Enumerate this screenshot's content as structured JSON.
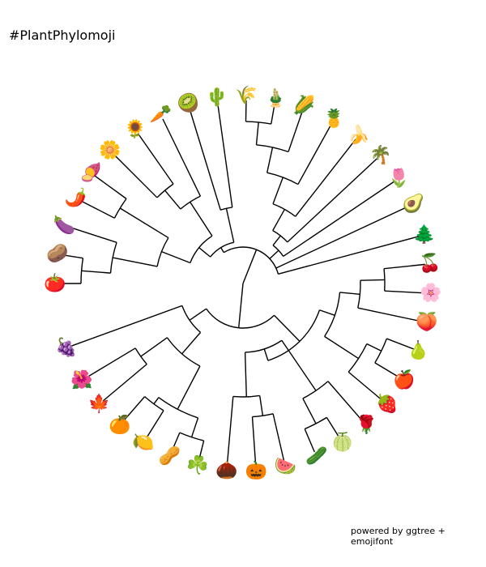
{
  "title": "#PlantPhylomoji",
  "caption": "powered by ggtree + emojifont",
  "colors": {
    "branch": "#000000",
    "background": "#ffffff"
  },
  "tree": {
    "tips": [
      {
        "name": "tomato",
        "emoji": "🍅"
      },
      {
        "name": "potato",
        "emoji": "🥔"
      },
      {
        "name": "eggplant",
        "emoji": "🍆"
      },
      {
        "name": "hot-pepper",
        "emoji": "🌶️"
      },
      {
        "name": "sweet-potato",
        "emoji": "🍠"
      },
      {
        "name": "blossom",
        "emoji": "🌼"
      },
      {
        "name": "sunflower",
        "emoji": "🌻"
      },
      {
        "name": "carrot",
        "emoji": "🥕"
      },
      {
        "name": "kiwi",
        "emoji": "🥝"
      },
      {
        "name": "cactus",
        "emoji": "🌵"
      },
      {
        "name": "rice",
        "emoji": "🌾"
      },
      {
        "name": "bamboo",
        "emoji": "🎍"
      },
      {
        "name": "corn",
        "emoji": "🌽"
      },
      {
        "name": "pineapple",
        "emoji": "🍍"
      },
      {
        "name": "banana",
        "emoji": "🍌"
      },
      {
        "name": "palm-tree",
        "emoji": "🌴"
      },
      {
        "name": "tulip",
        "emoji": "🌷"
      },
      {
        "name": "avocado",
        "emoji": "🥑"
      },
      {
        "name": "evergreen-tree",
        "emoji": "🌲"
      },
      {
        "name": "cherries",
        "emoji": "🍒"
      },
      {
        "name": "cherry-blossom",
        "emoji": "🌸"
      },
      {
        "name": "peach",
        "emoji": "🍑"
      },
      {
        "name": "pear",
        "emoji": "🍐"
      },
      {
        "name": "apple",
        "emoji": "🍎"
      },
      {
        "name": "strawberry",
        "emoji": "🍓"
      },
      {
        "name": "rose",
        "emoji": "🌹"
      },
      {
        "name": "melon",
        "emoji": "🍈"
      },
      {
        "name": "cucumber",
        "emoji": "🥒"
      },
      {
        "name": "watermelon",
        "emoji": "🍉"
      },
      {
        "name": "pumpkin",
        "emoji": "🎃"
      },
      {
        "name": "chestnut",
        "emoji": "🌰"
      },
      {
        "name": "shamrock",
        "emoji": "☘️"
      },
      {
        "name": "peanuts",
        "emoji": "🥜"
      },
      {
        "name": "lemon",
        "emoji": "🍋"
      },
      {
        "name": "tangerine",
        "emoji": "🍊"
      },
      {
        "name": "maple-leaf",
        "emoji": "🍁"
      },
      {
        "name": "hibiscus",
        "emoji": "🌺"
      },
      {
        "name": "grapes",
        "emoji": "🍇"
      }
    ],
    "tip_angles_deg": [
      180,
      171,
      162,
      153,
      144,
      135,
      125,
      116,
      107,
      98,
      89,
      80,
      71,
      61,
      52,
      43,
      34,
      25,
      15,
      6,
      -3,
      -12,
      -21,
      -31,
      -40,
      -49,
      -58,
      -67,
      -77,
      -86,
      -95,
      -104,
      -113,
      -122,
      -131,
      -140,
      -149,
      -160
    ]
  }
}
